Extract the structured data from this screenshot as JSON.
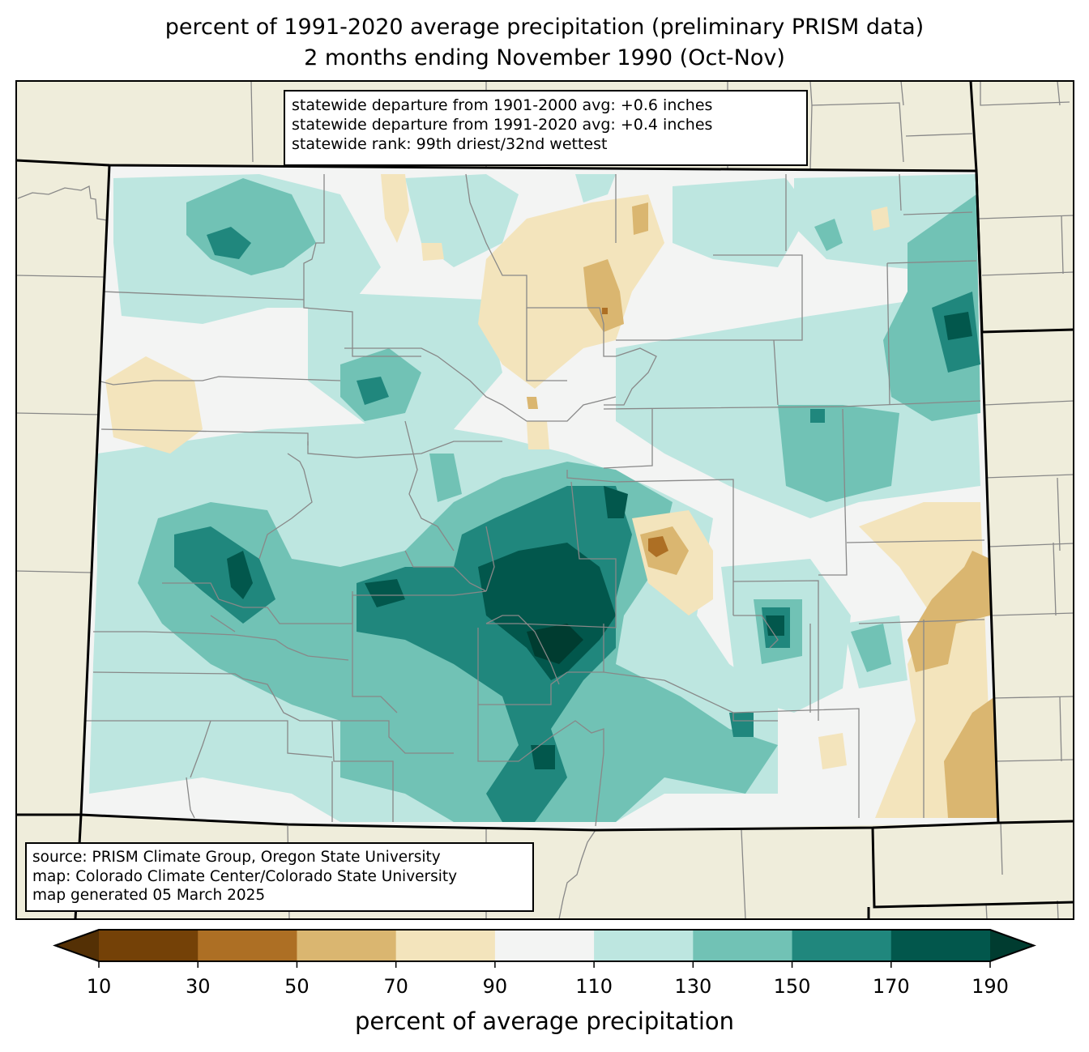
{
  "title": {
    "line1": "percent of 1991-2020 average precipitation (preliminary PRISM data)",
    "line2": "2 months ending November 1990 (Oct-Nov)"
  },
  "stats_box": {
    "line1": "statewide departure from 1901-2000 avg: +0.6 inches",
    "line2": "statewide departure from 1991-2020 avg: +0.4 inches",
    "line3": "statewide rank: 99th driest/32nd wettest"
  },
  "credits_box": {
    "line1": "source: PRISM Climate Group, Oregon State University",
    "line2": "map: Colorado Climate Center/Colorado State University",
    "line3": "map generated 05 March 2025"
  },
  "colorbar": {
    "label": "percent of average precipitation",
    "ticks": [
      "10",
      "30",
      "50",
      "70",
      "90",
      "110",
      "130",
      "150",
      "170",
      "190"
    ],
    "under_color": "#543005",
    "over_color": "#003c30",
    "colors": [
      "#744107",
      "#ad6f24",
      "#dab670",
      "#f3e4bc",
      "#f3f4f3",
      "#bde6e0",
      "#71c2b5",
      "#20877d",
      "#02574c"
    ]
  },
  "map_colors": {
    "background": "#efeddb",
    "state_border": "#000000",
    "county_border": "#888888"
  },
  "chart_data": {
    "type": "heatmap",
    "title": "percent of 1991-2020 average precipitation (preliminary PRISM data)",
    "subtitle": "2 months ending November 1990 (Oct-Nov)",
    "region": "Colorado",
    "colorbar_label": "percent of average precipitation",
    "levels": [
      10,
      30,
      50,
      70,
      90,
      110,
      130,
      150,
      170,
      190
    ],
    "extend": "both",
    "statewide_departure_1901_2000_in": 0.6,
    "statewide_departure_1991_2020_in": 0.4,
    "statewide_rank_driest": 99,
    "statewide_rank_wettest": 32
  }
}
